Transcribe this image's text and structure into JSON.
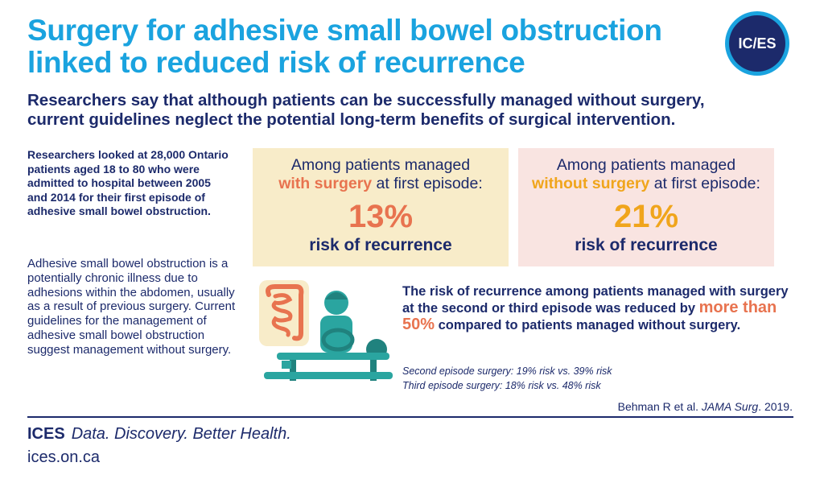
{
  "header": {
    "title_line1": "Surgery for adhesive small bowel obstruction",
    "title_line2": "linked to reduced risk of recurrence",
    "logo_text": "IC/ES",
    "subtitle_line1": "Researchers say that although patients can be successfully managed without surgery,",
    "subtitle_line2": "current guidelines neglect the potential long-term benefits of surgical intervention."
  },
  "left": {
    "study_lead": "Researchers looked at 28,000 Ontario patients aged 18 to 80 who were admitted to hospital between 2005 and 2014 for their first episode of adhesive small bowel obstruction.",
    "background": "Adhesive small bowel obstruction is a potentially chronic illness due to adhesions within the abdomen, usually as a result of previous surgery. Current guidelines for the management of adhesive small bowel obstruction suggest management without surgery."
  },
  "boxes": {
    "surgery": {
      "intro_line1": "Among patients managed",
      "highlight": "with surgery",
      "intro_tail": " at first episode:",
      "percent": "13%",
      "label": "risk of recurrence",
      "color": "#e8734f"
    },
    "no_surgery": {
      "intro_line1": "Among patients managed",
      "highlight": "without surgery",
      "intro_tail": " at first episode:",
      "percent": "21%",
      "label": "risk of recurrence",
      "color": "#f0a51c"
    }
  },
  "finding": {
    "text_before": "The risk of recurrence among patients managed with surgery at the second or third episode was reduced by ",
    "highlight": "more than 50%",
    "text_after": " compared to patients managed without surgery.",
    "detail_line1": "Second episode surgery: 19% risk vs. 39% risk",
    "detail_line2": "Third episode surgery: 18% risk vs. 48% risk"
  },
  "citation": {
    "authors": "Behman R et al. ",
    "journal": "JAMA Surg",
    "year": ". 2019."
  },
  "footer": {
    "brand": "ICES",
    "tagline": "Data. Discovery. Better Health.",
    "url": "ices.on.ca"
  },
  "colors": {
    "title_blue": "#1aa3df",
    "navy": "#1c2a6b",
    "orange": "#e8734f",
    "gold": "#f0a51c",
    "box_yellow": "#f8ecc9",
    "box_pink": "#f9e4e1"
  },
  "icons": {
    "illustration": "surgery-illustration-icon"
  }
}
